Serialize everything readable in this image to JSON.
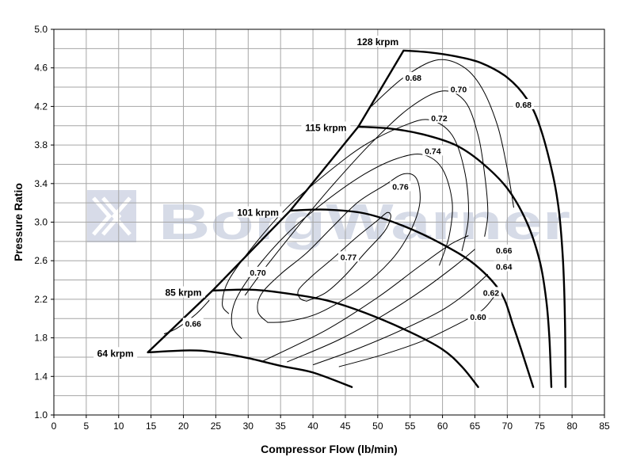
{
  "chart_data": {
    "type": "line",
    "xlabel": "Compressor Flow (lb/min)",
    "ylabel": "Pressure Ratio",
    "xlim": [
      0,
      85
    ],
    "ylim": [
      1.0,
      5.0
    ],
    "xticks": [
      "0",
      "5",
      "10",
      "15",
      "20",
      "25",
      "30",
      "35",
      "40",
      "45",
      "50",
      "55",
      "60",
      "65",
      "70",
      "75",
      "80",
      "85"
    ],
    "yticks": [
      "1.0",
      "1.4",
      "1.8",
      "2.2",
      "2.6",
      "3.0",
      "3.4",
      "3.8",
      "4.2",
      "4.6",
      "5.0"
    ],
    "grid": true,
    "watermark": "BorgWarner",
    "watermark_icon": "borgwarner-logo-icon",
    "surge_line": [
      [
        14.5,
        1.65
      ],
      [
        24.5,
        2.29
      ],
      [
        36.5,
        3.12
      ],
      [
        47,
        3.99
      ],
      [
        54,
        4.78
      ]
    ],
    "speed_lines": [
      {
        "name": "64 krpm",
        "points": [
          [
            14.5,
            1.65
          ],
          [
            21,
            1.67
          ],
          [
            25,
            1.65
          ],
          [
            30,
            1.59
          ],
          [
            35,
            1.51
          ],
          [
            40,
            1.44
          ],
          [
            46,
            1.29
          ]
        ]
      },
      {
        "name": "85 krpm",
        "points": [
          [
            24.5,
            2.29
          ],
          [
            30,
            2.3
          ],
          [
            35,
            2.27
          ],
          [
            42,
            2.19
          ],
          [
            48,
            2.06
          ],
          [
            55,
            1.86
          ],
          [
            60,
            1.68
          ],
          [
            63,
            1.5
          ],
          [
            65.5,
            1.29
          ]
        ]
      },
      {
        "name": "101 krpm",
        "points": [
          [
            36.5,
            3.12
          ],
          [
            42,
            3.13
          ],
          [
            48,
            3.09
          ],
          [
            54,
            2.96
          ],
          [
            60,
            2.77
          ],
          [
            65,
            2.56
          ],
          [
            69,
            2.27
          ],
          [
            71,
            1.91
          ],
          [
            73,
            1.5
          ],
          [
            74,
            1.29
          ]
        ]
      },
      {
        "name": "115 krpm",
        "points": [
          [
            47,
            3.99
          ],
          [
            52,
            3.97
          ],
          [
            57,
            3.91
          ],
          [
            62,
            3.8
          ],
          [
            66,
            3.62
          ],
          [
            70,
            3.35
          ],
          [
            73,
            3.0
          ],
          [
            75,
            2.6
          ],
          [
            76,
            2.2
          ],
          [
            76.5,
            1.8
          ],
          [
            76.8,
            1.29
          ]
        ]
      },
      {
        "name": "128 krpm",
        "points": [
          [
            54,
            4.78
          ],
          [
            58,
            4.76
          ],
          [
            62,
            4.72
          ],
          [
            66,
            4.65
          ],
          [
            70,
            4.5
          ],
          [
            73,
            4.28
          ],
          [
            75,
            4.0
          ],
          [
            77,
            3.5
          ],
          [
            78,
            3.1
          ],
          [
            78.6,
            2.6
          ],
          [
            78.9,
            2.0
          ],
          [
            79,
            1.29
          ]
        ]
      }
    ],
    "efficiency_islands": [
      {
        "label": "0.77",
        "points": [
          [
            39,
            2.18
          ],
          [
            38,
            2.21
          ],
          [
            37.8,
            2.3
          ],
          [
            40,
            2.45
          ],
          [
            43,
            2.62
          ],
          [
            46.5,
            2.83
          ],
          [
            50,
            3.02
          ],
          [
            51.5,
            3.1
          ],
          [
            52,
            3.05
          ],
          [
            51,
            2.9
          ],
          [
            48,
            2.68
          ],
          [
            45,
            2.45
          ],
          [
            42,
            2.27
          ],
          [
            39,
            2.18
          ]
        ]
      },
      {
        "label": "0.76",
        "points": [
          [
            33,
            1.96
          ],
          [
            31.5,
            2.07
          ],
          [
            32,
            2.25
          ],
          [
            35,
            2.46
          ],
          [
            39,
            2.68
          ],
          [
            43,
            2.95
          ],
          [
            47,
            3.21
          ],
          [
            51,
            3.38
          ],
          [
            54,
            3.5
          ],
          [
            56,
            3.45
          ],
          [
            56.5,
            3.2
          ],
          [
            55,
            2.9
          ],
          [
            52,
            2.6
          ],
          [
            47,
            2.3
          ],
          [
            41,
            2.06
          ],
          [
            36,
            1.97
          ],
          [
            33,
            1.96
          ]
        ]
      }
    ],
    "efficiency_lines": [
      {
        "label": "0.74",
        "points": [
          [
            29,
            1.79
          ],
          [
            27.5,
            1.93
          ],
          [
            28,
            2.18
          ],
          [
            31,
            2.5
          ],
          [
            36,
            2.88
          ],
          [
            42,
            3.22
          ],
          [
            48,
            3.5
          ],
          [
            53,
            3.66
          ],
          [
            57,
            3.7
          ],
          [
            60,
            3.55
          ],
          [
            61.5,
            3.2
          ],
          [
            61,
            2.85
          ],
          [
            59.5,
            2.55
          ]
        ]
      },
      {
        "label": "0.72",
        "points": [
          [
            27,
            2.05
          ],
          [
            26,
            2.15
          ],
          [
            27,
            2.4
          ],
          [
            31,
            2.77
          ],
          [
            36,
            3.15
          ],
          [
            42,
            3.5
          ],
          [
            48,
            3.8
          ],
          [
            54,
            4.0
          ],
          [
            58,
            4.06
          ],
          [
            61.5,
            3.9
          ],
          [
            63.5,
            3.5
          ],
          [
            64,
            3.05
          ],
          [
            63,
            2.7
          ]
        ]
      },
      {
        "label": "0.70",
        "points": [
          [
            29.5,
            2.24
          ],
          [
            33,
            2.56
          ],
          [
            38,
            2.98
          ],
          [
            43,
            3.38
          ],
          [
            49,
            3.82
          ],
          [
            55,
            4.19
          ],
          [
            60,
            4.36
          ],
          [
            63.5,
            4.25
          ],
          [
            65.5,
            3.9
          ],
          [
            66.5,
            3.5
          ],
          [
            67,
            3.1
          ],
          [
            66.5,
            2.85
          ]
        ]
      },
      {
        "label": "0.68",
        "points": [
          [
            49,
            4.2
          ],
          [
            54,
            4.5
          ],
          [
            59,
            4.68
          ],
          [
            63,
            4.62
          ],
          [
            66,
            4.4
          ],
          [
            68.5,
            4.0
          ],
          [
            70,
            3.55
          ],
          [
            71,
            3.15
          ]
        ]
      },
      {
        "label": "0.66",
        "points": [
          [
            32,
            1.55
          ],
          [
            42,
            1.88
          ],
          [
            50,
            2.22
          ],
          [
            56,
            2.52
          ],
          [
            61,
            2.76
          ],
          [
            64,
            2.86
          ]
        ]
      },
      {
        "label": "0.64",
        "points": [
          [
            36,
            1.55
          ],
          [
            44,
            1.78
          ],
          [
            51,
            2.04
          ],
          [
            57,
            2.3
          ],
          [
            62,
            2.55
          ],
          [
            65,
            2.72
          ]
        ]
      },
      {
        "label": "0.62",
        "points": [
          [
            40,
            1.52
          ],
          [
            47,
            1.69
          ],
          [
            54,
            1.89
          ],
          [
            60,
            2.09
          ],
          [
            64,
            2.28
          ],
          [
            67,
            2.46
          ]
        ]
      },
      {
        "label": "0.60",
        "points": [
          [
            44,
            1.5
          ],
          [
            51,
            1.63
          ],
          [
            57,
            1.77
          ],
          [
            62,
            1.93
          ],
          [
            66,
            2.08
          ],
          [
            68,
            2.23
          ]
        ]
      },
      {
        "label": "0.66",
        "points": [
          [
            17,
            1.84
          ],
          [
            19,
            1.9
          ],
          [
            22,
            2.05
          ],
          [
            24,
            2.19
          ]
        ]
      }
    ],
    "efficiency_labels": [
      {
        "label": "0.77",
        "x": 45.5,
        "y": 2.64
      },
      {
        "label": "0.76",
        "x": 53.5,
        "y": 3.37
      },
      {
        "label": "0.74",
        "x": 58.5,
        "y": 3.74
      },
      {
        "label": "0.72",
        "x": 59.5,
        "y": 4.08
      },
      {
        "label": "0.70",
        "x": 62.5,
        "y": 4.38
      },
      {
        "label": "0.68",
        "x": 55.5,
        "y": 4.5
      },
      {
        "label": "0.68",
        "x": 72.5,
        "y": 4.22
      },
      {
        "label": "0.70",
        "x": 31.5,
        "y": 2.48
      },
      {
        "label": "0.66",
        "x": 21.5,
        "y": 1.95
      },
      {
        "label": "0.66",
        "x": 69.5,
        "y": 2.71
      },
      {
        "label": "0.64",
        "x": 69.5,
        "y": 2.54
      },
      {
        "label": "0.62",
        "x": 67.5,
        "y": 2.27
      },
      {
        "label": "0.60",
        "x": 65.5,
        "y": 2.02
      }
    ],
    "speed_labels": [
      {
        "label": "128 krpm",
        "x": 50,
        "y": 4.86
      },
      {
        "label": "115 krpm",
        "x": 42,
        "y": 3.97
      },
      {
        "label": "101 krpm",
        "x": 31.5,
        "y": 3.09
      },
      {
        "label": "85 krpm",
        "x": 20,
        "y": 2.26
      },
      {
        "label": "64 krpm",
        "x": 9.5,
        "y": 1.63
      }
    ]
  }
}
